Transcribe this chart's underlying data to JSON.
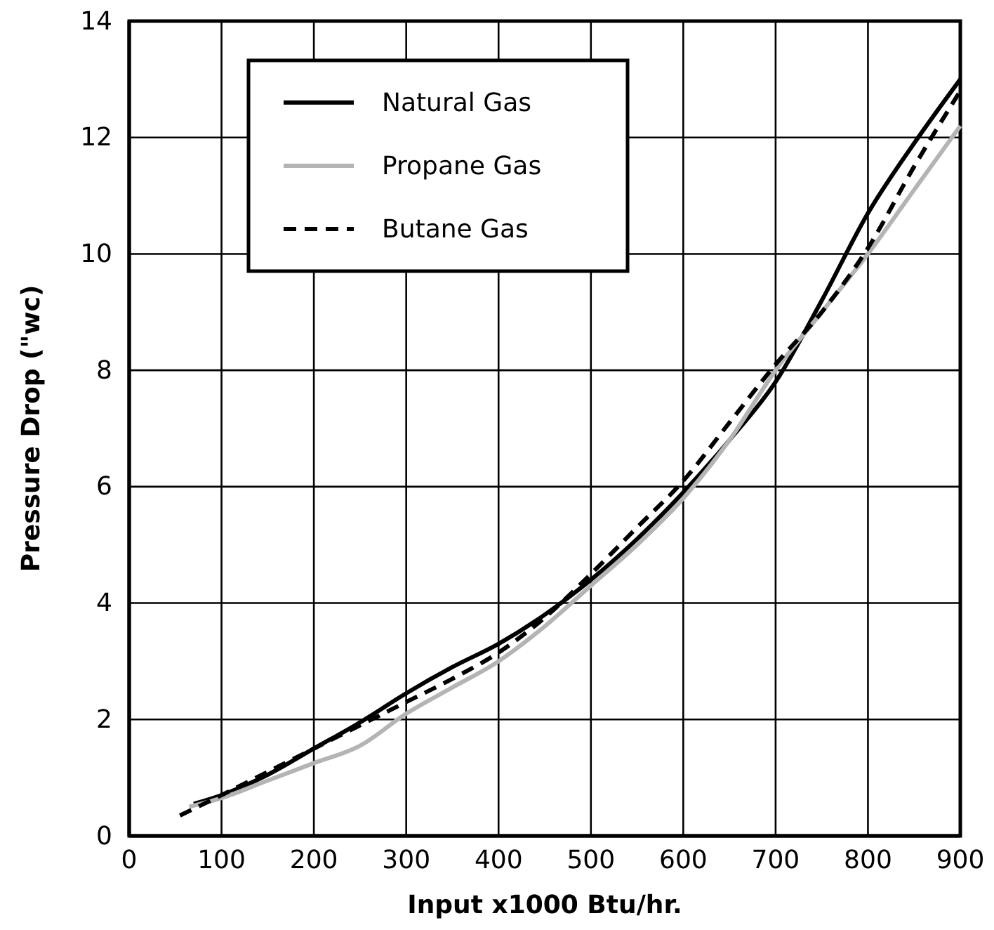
{
  "chart_data": {
    "type": "line",
    "xlabel": "Input x1000 Btu/hr.",
    "ylabel": "Pressure Drop (\"wc)",
    "xlim": [
      0,
      900
    ],
    "xticks": [
      0,
      100,
      200,
      300,
      400,
      500,
      600,
      700,
      800,
      900
    ],
    "ylim": [
      0,
      14
    ],
    "yticks": [
      0,
      2,
      4,
      6,
      8,
      10,
      12,
      14
    ],
    "grid": true,
    "legend": "top left",
    "series": [
      {
        "name": "Natural Gas",
        "color": "#000000",
        "line_style": "solid",
        "x": [
          70,
          100,
          150,
          200,
          250,
          300,
          350,
          400,
          450,
          500,
          550,
          600,
          650,
          700,
          750,
          800,
          850,
          900
        ],
        "values": [
          0.55,
          0.7,
          1.05,
          1.5,
          1.95,
          2.45,
          2.9,
          3.3,
          3.8,
          4.4,
          5.1,
          5.9,
          6.8,
          7.8,
          9.2,
          10.7,
          11.9,
          13
        ]
      },
      {
        "name": "Propane Gas",
        "color": "#b4b4b4",
        "line_style": "solid",
        "x": [
          65,
          100,
          150,
          200,
          250,
          300,
          350,
          400,
          450,
          500,
          550,
          600,
          650,
          700,
          750,
          800,
          850,
          900
        ],
        "values": [
          0.5,
          0.65,
          0.95,
          1.25,
          1.55,
          2.1,
          2.55,
          3.0,
          3.6,
          4.3,
          5.0,
          5.8,
          6.8,
          8.0,
          9.0,
          10.0,
          11.1,
          12.2
        ]
      },
      {
        "name": "Butane Gas",
        "color": "#000000",
        "line_style": "dashed",
        "x": [
          55,
          100,
          150,
          200,
          250,
          300,
          350,
          400,
          450,
          500,
          550,
          600,
          650,
          700,
          750,
          800,
          850,
          900
        ],
        "values": [
          0.35,
          0.7,
          1.1,
          1.5,
          1.9,
          2.3,
          2.7,
          3.15,
          3.75,
          4.5,
          5.3,
          6.1,
          7.1,
          8.1,
          9.0,
          10.1,
          11.5,
          12.8
        ]
      }
    ]
  }
}
